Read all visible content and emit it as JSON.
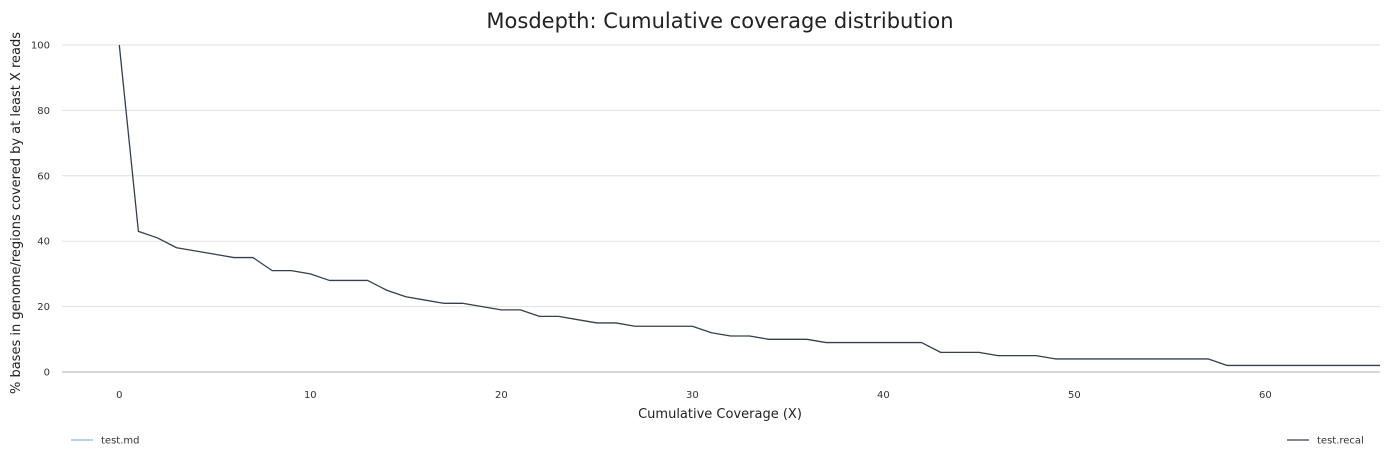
{
  "chart_data": {
    "type": "line",
    "title": "Mosdepth: Cumulative coverage distribution",
    "xlabel": "Cumulative Coverage (X)",
    "ylabel": "% bases in genome/regions covered by at least X reads",
    "xlim": [
      -3,
      66
    ],
    "ylim": [
      0,
      100
    ],
    "xticks": [
      0,
      10,
      20,
      30,
      40,
      50,
      60
    ],
    "yticks": [
      0,
      20,
      40,
      60,
      80,
      100
    ],
    "grid": true,
    "legend_placement": "bottom",
    "series": [
      {
        "name": "test.md",
        "color": "#7cb5ec",
        "x": [],
        "y": []
      },
      {
        "name": "test.recal",
        "color": "#434348",
        "x": [
          0,
          1,
          2,
          3,
          4,
          5,
          6,
          7,
          8,
          9,
          10,
          11,
          12,
          13,
          14,
          15,
          16,
          17,
          18,
          19,
          20,
          21,
          22,
          23,
          24,
          25,
          26,
          27,
          28,
          29,
          30,
          31,
          32,
          33,
          34,
          35,
          36,
          37,
          38,
          39,
          40,
          41,
          42,
          43,
          44,
          45,
          46,
          47,
          48,
          49,
          50,
          51,
          52,
          53,
          54,
          55,
          56,
          57,
          58,
          59,
          60,
          61,
          62,
          63,
          64,
          65,
          66
        ],
        "y": [
          100,
          43,
          41,
          38,
          37,
          36,
          35,
          35,
          31,
          31,
          30,
          28,
          28,
          28,
          25,
          23,
          22,
          21,
          21,
          20,
          19,
          19,
          17,
          17,
          16,
          15,
          15,
          14,
          14,
          14,
          14,
          12,
          11,
          11,
          10,
          10,
          10,
          9,
          9,
          9,
          9,
          9,
          9,
          6,
          6,
          6,
          5,
          5,
          5,
          4,
          4,
          4,
          4,
          4,
          4,
          4,
          4,
          4,
          2,
          2,
          2,
          2,
          2,
          2,
          2,
          2,
          2
        ]
      }
    ]
  }
}
